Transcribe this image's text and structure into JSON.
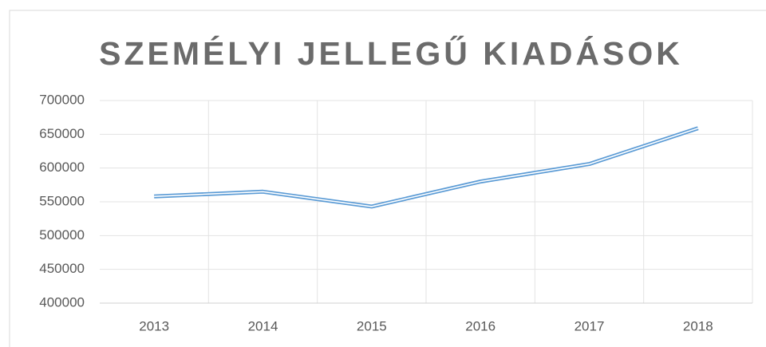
{
  "chart_data": {
    "type": "line",
    "title": "SZEMÉLYI JELLEGŰ KIADÁSOK",
    "categories": [
      "2013",
      "2014",
      "2015",
      "2016",
      "2017",
      "2018"
    ],
    "series": [
      {
        "name": "Személyi jellegű kiadások",
        "color": "#5b9bd5",
        "values": [
          558000,
          565000,
          543000,
          580000,
          606000,
          659000
        ]
      }
    ],
    "ylim": [
      400000,
      700000
    ],
    "yticks": [
      400000,
      450000,
      500000,
      550000,
      600000,
      650000,
      700000
    ],
    "grid": true,
    "legend": false
  }
}
